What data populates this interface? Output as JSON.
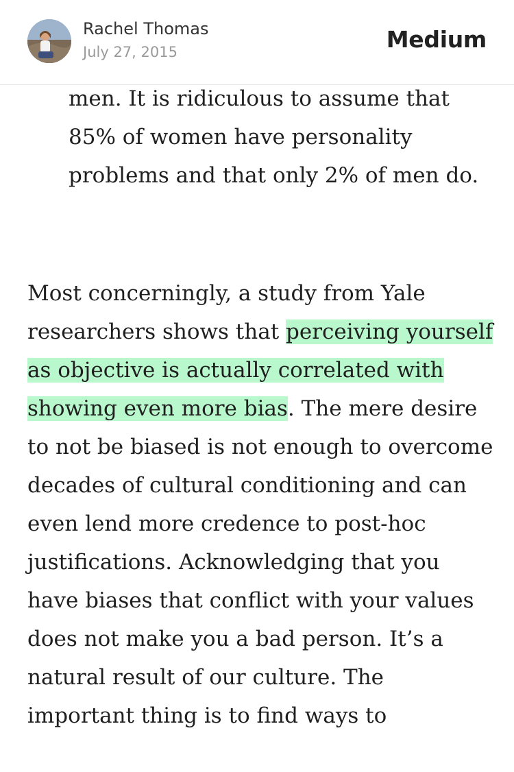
{
  "header": {
    "author_name": "Rachel Thomas",
    "post_date": "July 27, 2015",
    "brand": "Medium",
    "avatar_icon": "avatar-photo"
  },
  "article": {
    "blockquote_text": "men. It is ridiculous to assume that 85% of women have personality problems and that only 2% of men do.",
    "paragraph_pre": "Most concerningly, a study from Yale researchers shows that ",
    "paragraph_highlight": "perceiving yourself as objective is actually correlated with showing even more bias",
    "paragraph_post": ". The mere desire to not be biased is not enough to overcome decades of cultural conditioning and can even lend more credence to post-hoc justifications. Acknowledging that you have biases that conflict with your values does not make you a bad person. It’s a natural result of our culture. The important thing is to find ways to",
    "highlight_color": "#b9f8cd"
  }
}
